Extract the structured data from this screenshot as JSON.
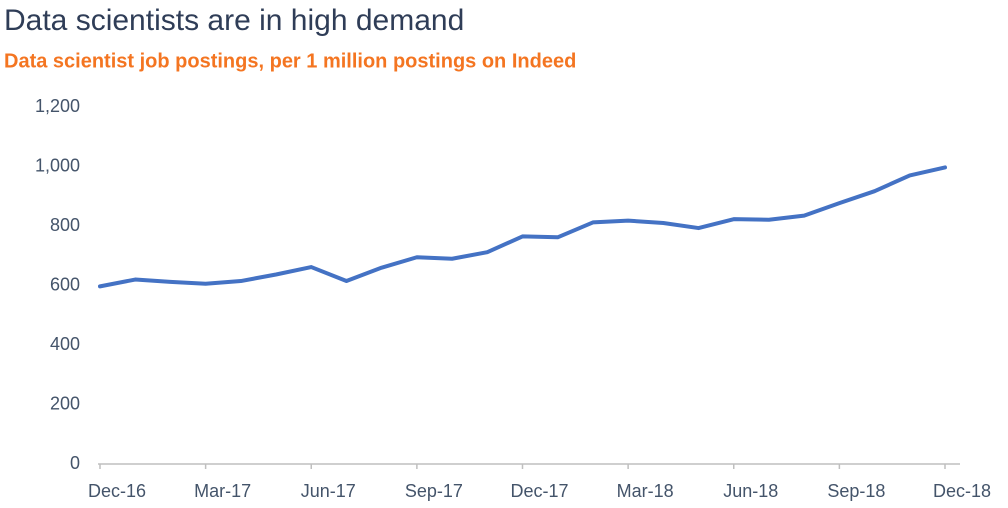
{
  "chart_data": {
    "type": "line",
    "title": "Data scientists are in high demand",
    "subtitle": "Data scientist job postings, per 1 million postings on Indeed",
    "categories": [
      "Dec-16",
      null,
      null,
      "Mar-17",
      null,
      null,
      "Jun-17",
      null,
      null,
      "Sep-17",
      null,
      null,
      "Dec-17",
      null,
      null,
      "Mar-18",
      null,
      null,
      "Jun-18",
      null,
      null,
      "Sep-18",
      null,
      null,
      "Dec-18"
    ],
    "series": [
      {
        "name": "Data scientist job postings",
        "color": "#4472c4",
        "values": [
          597,
          620,
          612,
          606,
          615,
          637,
          662,
          615,
          660,
          695,
          690,
          712,
          765,
          762,
          812,
          818,
          810,
          793,
          823,
          821,
          835,
          877,
          917,
          970,
          997
        ]
      }
    ],
    "ylim": [
      0,
      1200
    ],
    "yticks": [
      0,
      200,
      400,
      600,
      800,
      {
        "value": 1000,
        "label": "1,000"
      },
      {
        "value": 1200,
        "label": "1,200"
      }
    ],
    "grid": false
  }
}
